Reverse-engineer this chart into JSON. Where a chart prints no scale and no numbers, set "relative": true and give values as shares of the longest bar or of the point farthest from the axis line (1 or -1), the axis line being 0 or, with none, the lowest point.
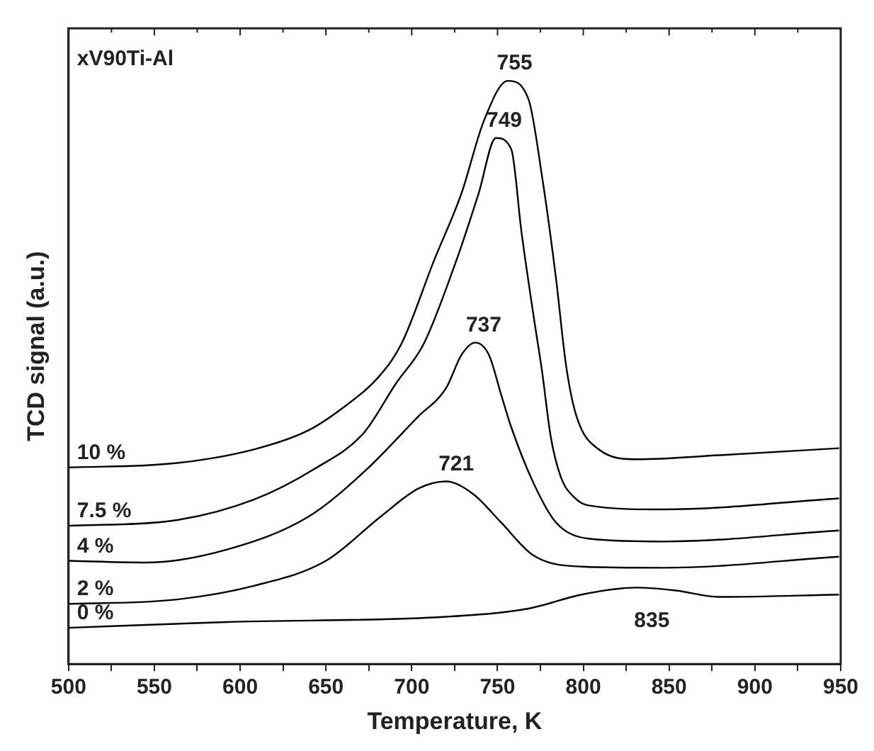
{
  "chart_data": {
    "type": "line",
    "xlabel": "Temperature, K",
    "ylabel": "TCD signal (a.u.)",
    "relative": true,
    "xlim": [
      500,
      950
    ],
    "xticks": [
      500,
      {
        "value": 525,
        "label": null
      },
      550,
      {
        "value": 575,
        "label": null
      },
      600,
      {
        "value": 625,
        "label": null
      },
      650,
      {
        "value": 675,
        "label": null
      },
      700,
      {
        "value": 725,
        "label": null
      },
      750,
      {
        "value": 775,
        "label": null
      },
      800,
      {
        "value": 825,
        "label": null
      },
      850,
      {
        "value": 875,
        "label": null
      },
      900,
      {
        "value": 925,
        "label": null
      },
      950
    ],
    "grid": false,
    "legend": false,
    "marker": "none",
    "line_style": "solid",
    "series": [
      {
        "name": "10 %",
        "color": "#000000",
        "x": [
          500,
          561,
          608,
          640,
          662,
          680,
          694,
          713,
          729,
          742,
          756,
          768,
          776,
          784,
          790,
          796,
          809,
          831,
          879,
          949
        ],
        "values": [
          0.337,
          0.344,
          0.368,
          0.401,
          0.444,
          0.49,
          0.549,
          0.692,
          0.807,
          0.931,
          1.0,
          0.969,
          0.835,
          0.663,
          0.511,
          0.425,
          0.368,
          0.351,
          0.358,
          0.37
        ]
      },
      {
        "name": "7.5 %",
        "color": "#000000",
        "x": [
          500,
          561,
          608,
          643,
          672,
          691,
          707,
          726,
          739,
          749,
          758,
          764,
          771,
          776,
          781,
          787,
          795,
          803,
          847,
          949
        ],
        "values": [
          0.237,
          0.246,
          0.282,
          0.334,
          0.396,
          0.482,
          0.549,
          0.692,
          0.807,
          0.902,
          0.883,
          0.74,
          0.597,
          0.501,
          0.39,
          0.32,
          0.285,
          0.272,
          0.265,
          0.284
        ]
      },
      {
        "name": "4 %",
        "color": "#000000",
        "x": [
          500,
          545,
          592,
          640,
          672,
          704,
          720,
          729,
          737,
          745,
          752,
          758,
          771,
          784,
          803,
          847,
          949
        ],
        "values": [
          0.177,
          0.174,
          0.196,
          0.253,
          0.329,
          0.425,
          0.473,
          0.53,
          0.551,
          0.53,
          0.463,
          0.406,
          0.31,
          0.243,
          0.215,
          0.21,
          0.229
        ]
      },
      {
        "name": "2 %",
        "color": "#000000",
        "x": [
          500,
          561,
          608,
          650,
          682,
          704,
          720,
          736,
          752,
          771,
          799,
          847,
          949
        ],
        "values": [
          0.103,
          0.11,
          0.134,
          0.177,
          0.253,
          0.301,
          0.313,
          0.291,
          0.243,
          0.186,
          0.167,
          0.165,
          0.184
        ]
      },
      {
        "name": "0 %",
        "color": "#000000",
        "x": [
          500,
          592,
          720,
          768,
          799,
          831,
          854,
          879,
          949
        ],
        "values": [
          0.062,
          0.072,
          0.081,
          0.095,
          0.119,
          0.131,
          0.126,
          0.115,
          0.119
        ]
      }
    ],
    "annotations": [
      "xV90Ti-Al",
      {
        "text": "755",
        "x": 755,
        "y": 1.0
      },
      {
        "text": "749",
        "x": 749,
        "y": 0.902
      },
      {
        "text": "737",
        "x": 737,
        "y": 0.551
      },
      {
        "text": "721",
        "x": 721,
        "y": 0.313
      },
      {
        "text": "835",
        "x": 835,
        "y": 0.131
      }
    ]
  }
}
